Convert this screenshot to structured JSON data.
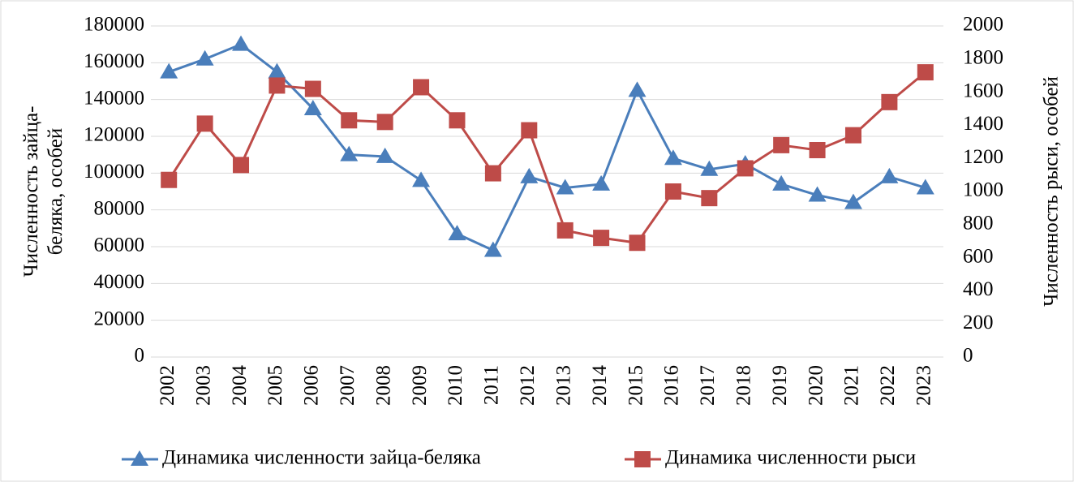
{
  "chart_data": {
    "type": "line",
    "categories": [
      "2002",
      "2003",
      "2004",
      "2005",
      "2006",
      "2007",
      "2008",
      "2009",
      "2010",
      "2011",
      "2012",
      "2013",
      "2014",
      "2015",
      "2016",
      "2017",
      "2018",
      "2019",
      "2020",
      "2021",
      "2022",
      "2023"
    ],
    "y_label": [
      "Численность зайца-",
      "беляка, особей"
    ],
    "y2_label": "Численность рыси, особей",
    "ylim": [
      0,
      180000
    ],
    "yticks": [
      0,
      20000,
      40000,
      60000,
      80000,
      100000,
      120000,
      140000,
      160000,
      180000
    ],
    "y2lim": [
      0,
      2000
    ],
    "y2ticks": [
      0,
      200,
      400,
      600,
      800,
      1000,
      1200,
      1400,
      1600,
      1800,
      2000
    ],
    "grid": true,
    "legend": "bottom",
    "series": [
      {
        "name": "Динамика численности зайца-беляка",
        "color": "#4a7ebb",
        "marker": "triangle",
        "values": [
          155000,
          162000,
          170000,
          155000,
          135000,
          110000,
          109000,
          96000,
          67000,
          58000,
          98000,
          92000,
          94000,
          145000,
          108000,
          102000,
          105000,
          94000,
          88000,
          84000,
          98000,
          92000
        ]
      },
      {
        "name": "Динамика численности рыси",
        "color": "#be4b48",
        "marker": "square",
        "axis": "y2",
        "values": [
          1070,
          1410,
          1160,
          1640,
          1620,
          1430,
          1420,
          1630,
          1430,
          1110,
          1370,
          765,
          720,
          690,
          1000,
          960,
          1140,
          1280,
          1250,
          1340,
          1540,
          1720
        ]
      }
    ]
  }
}
